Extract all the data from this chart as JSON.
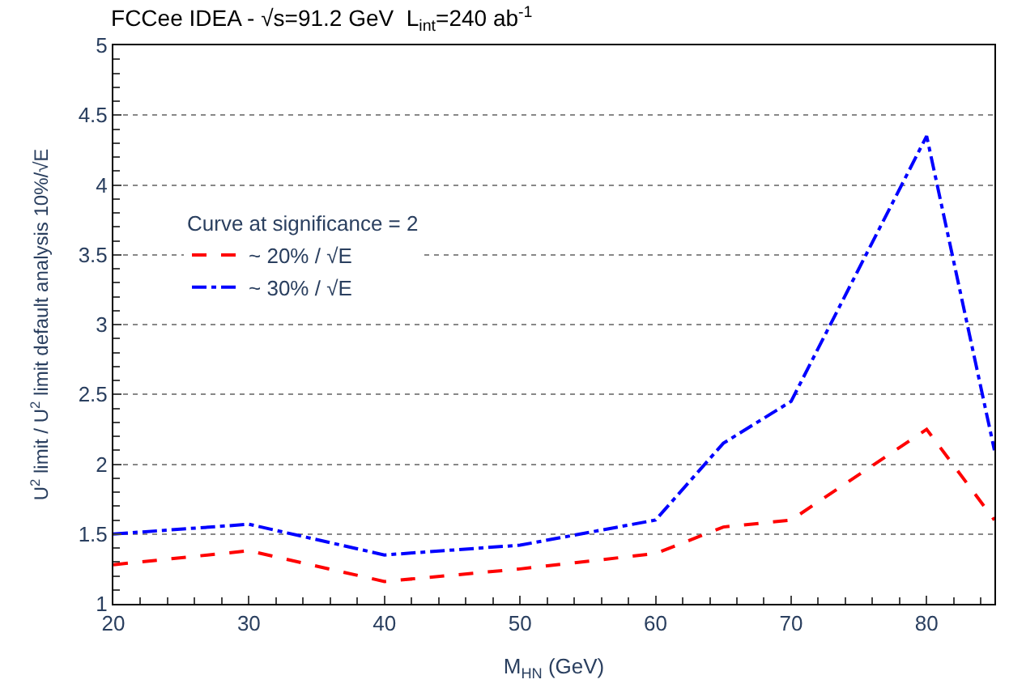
{
  "chart_data": {
    "type": "line",
    "title": "FCCee IDEA - √s=91.2 GeV  L$_{int}$=240 ab$^{-1}$",
    "xlabel": "M$_{HN}$ (GeV)",
    "ylabel": "U$^{2}$ limit / U$^{2}$ limit default analysis 10%/√E",
    "legend_title": "Curve at significance = 2",
    "x": [
      20,
      30,
      40,
      50,
      60,
      65,
      70,
      80,
      85
    ],
    "series": [
      {
        "name": "~ 20% / √E",
        "color": "#ff0000",
        "line_style": "dashed",
        "values": [
          1.28,
          1.38,
          1.16,
          1.25,
          1.36,
          1.55,
          1.6,
          2.25,
          1.6
        ]
      },
      {
        "name": "~ 30% / √E",
        "color": "#0000ff",
        "line_style": "dotted",
        "values": [
          1.5,
          1.57,
          1.35,
          1.42,
          1.6,
          2.15,
          2.45,
          4.35,
          2.1
        ]
      }
    ],
    "xlim": [
      20,
      85
    ],
    "xticks": [
      20,
      30,
      40,
      50,
      60,
      70,
      80
    ],
    "ylim": [
      1,
      5
    ],
    "yticks": [
      1,
      1.5,
      2,
      2.5,
      3,
      3.5,
      4,
      4.5,
      5
    ],
    "grid": "y",
    "legend": "left",
    "marker": "none"
  }
}
